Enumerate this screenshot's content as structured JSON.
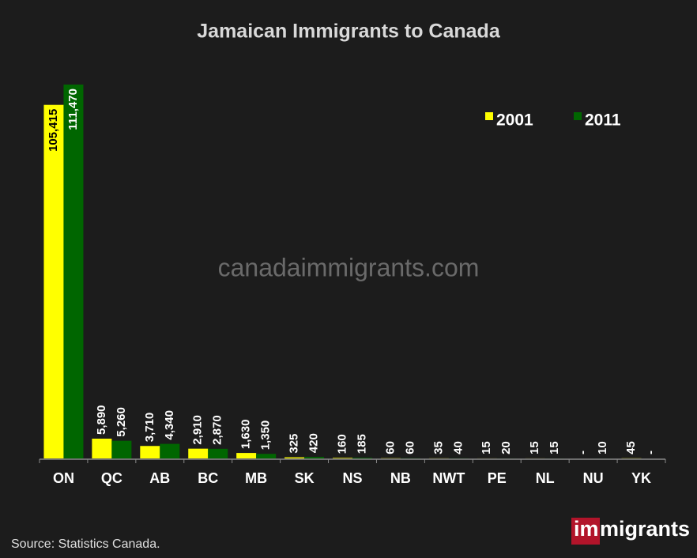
{
  "chart_data": {
    "type": "bar",
    "title": "Jamaican Immigrants to Canada",
    "categories": [
      "ON",
      "QC",
      "AB",
      "BC",
      "MB",
      "SK",
      "NS",
      "NB",
      "NWT",
      "PE",
      "NL",
      "NU",
      "YK"
    ],
    "series": [
      {
        "name": "2001",
        "color": "#ffff00",
        "values": [
          105415,
          5890,
          3710,
          2910,
          1630,
          325,
          160,
          60,
          35,
          15,
          15,
          null,
          45
        ],
        "value_labels": [
          "105,415",
          "5,890",
          "3,710",
          "2,910",
          "1,630",
          "325",
          "160",
          "60",
          "35",
          "15",
          "15",
          "-",
          "45"
        ]
      },
      {
        "name": "2011",
        "color": "#006600",
        "values": [
          111470,
          5260,
          4340,
          2870,
          1350,
          420,
          185,
          60,
          40,
          20,
          15,
          10,
          null
        ],
        "value_labels": [
          "111,470",
          "5,260",
          "4,340",
          "2,870",
          "1,350",
          "420",
          "185",
          "60",
          "40",
          "20",
          "15",
          "10",
          "-"
        ]
      }
    ],
    "legend": "top-right",
    "watermark": "canadaimmigrants.com",
    "source": "Source: Statistics Canada.",
    "logo": {
      "highlight": "im",
      "rest": "migrants"
    }
  }
}
